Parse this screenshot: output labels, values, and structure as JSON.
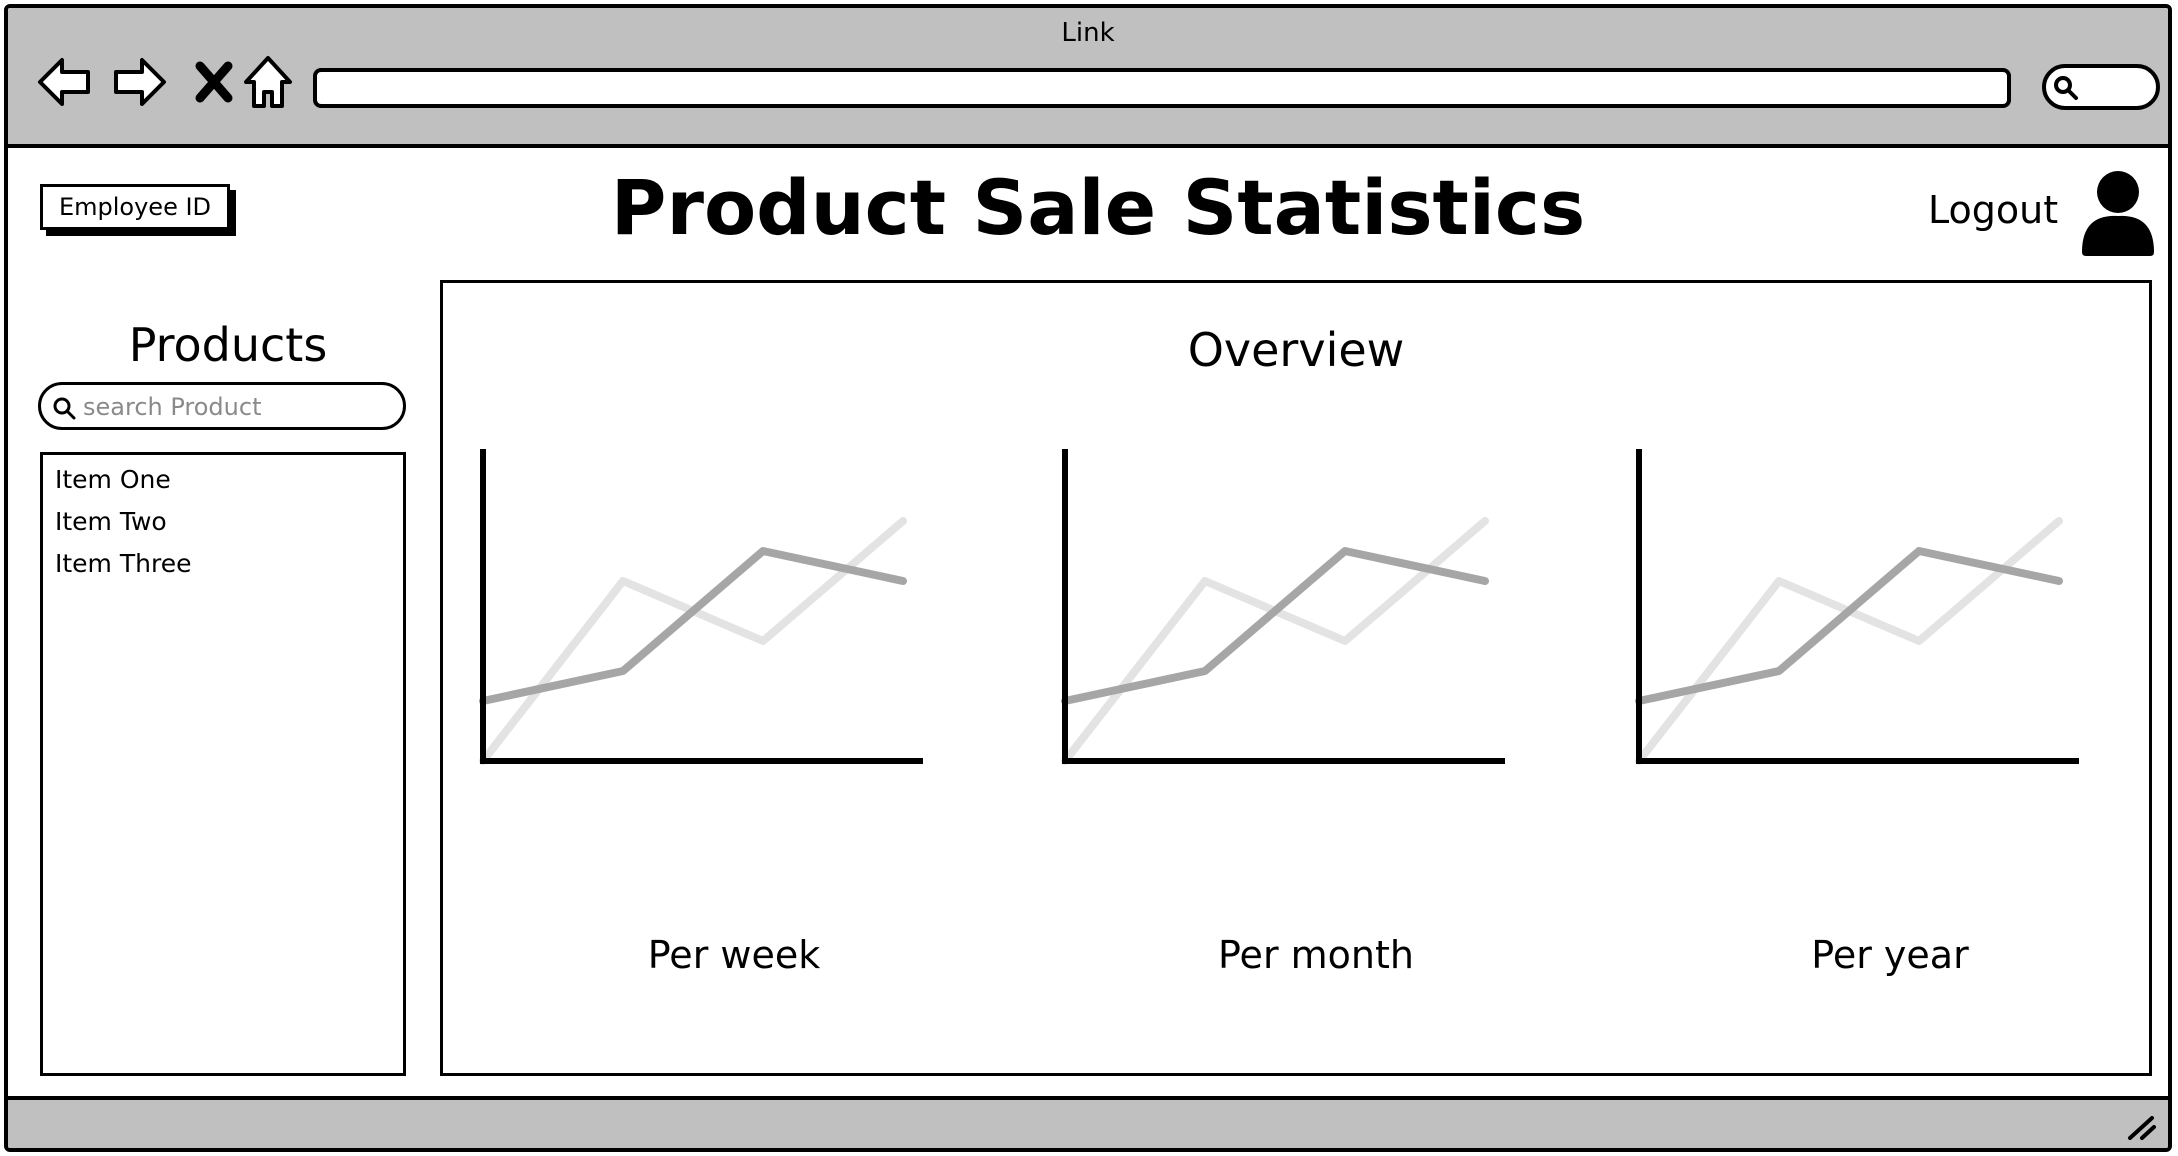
{
  "window": {
    "title": "Link"
  },
  "header": {
    "employee_button": "Employee ID",
    "page_title": "Product Sale Statistics",
    "logout": "Logout"
  },
  "sidebar": {
    "title": "Products",
    "search_placeholder": "search Product",
    "items": [
      {
        "label": "Item One"
      },
      {
        "label": "Item Two"
      },
      {
        "label": "Item Three"
      }
    ]
  },
  "main": {
    "title": "Overview",
    "charts": [
      {
        "label": "Per week"
      },
      {
        "label": "Per month"
      },
      {
        "label": "Per year"
      }
    ]
  },
  "icons": {
    "nav": [
      "back-icon",
      "forward-icon",
      "close-icon",
      "home-icon"
    ],
    "search": "search-icon",
    "user": "user-icon",
    "resize": "resize-grip-icon"
  },
  "colors": {
    "chrome": "#c0c0c0",
    "series_dark": "#a6a6a6",
    "series_light": "#e3e3e3"
  },
  "chart_data": [
    {
      "type": "line",
      "title": "Per week",
      "x": [
        0,
        1,
        2,
        3
      ],
      "series": [
        {
          "values": [
            0,
            6,
            4,
            8
          ]
        },
        {
          "values": [
            2,
            3,
            7,
            6
          ]
        }
      ],
      "ylim": [
        0,
        10
      ]
    },
    {
      "type": "line",
      "title": "Per month",
      "x": [
        0,
        1,
        2,
        3
      ],
      "series": [
        {
          "values": [
            0,
            6,
            4,
            8
          ]
        },
        {
          "values": [
            2,
            3,
            7,
            6
          ]
        }
      ],
      "ylim": [
        0,
        10
      ]
    },
    {
      "type": "line",
      "title": "Per year",
      "x": [
        0,
        1,
        2,
        3
      ],
      "series": [
        {
          "values": [
            0,
            6,
            4,
            8
          ]
        },
        {
          "values": [
            2,
            3,
            7,
            6
          ]
        }
      ],
      "ylim": [
        0,
        10
      ]
    }
  ]
}
